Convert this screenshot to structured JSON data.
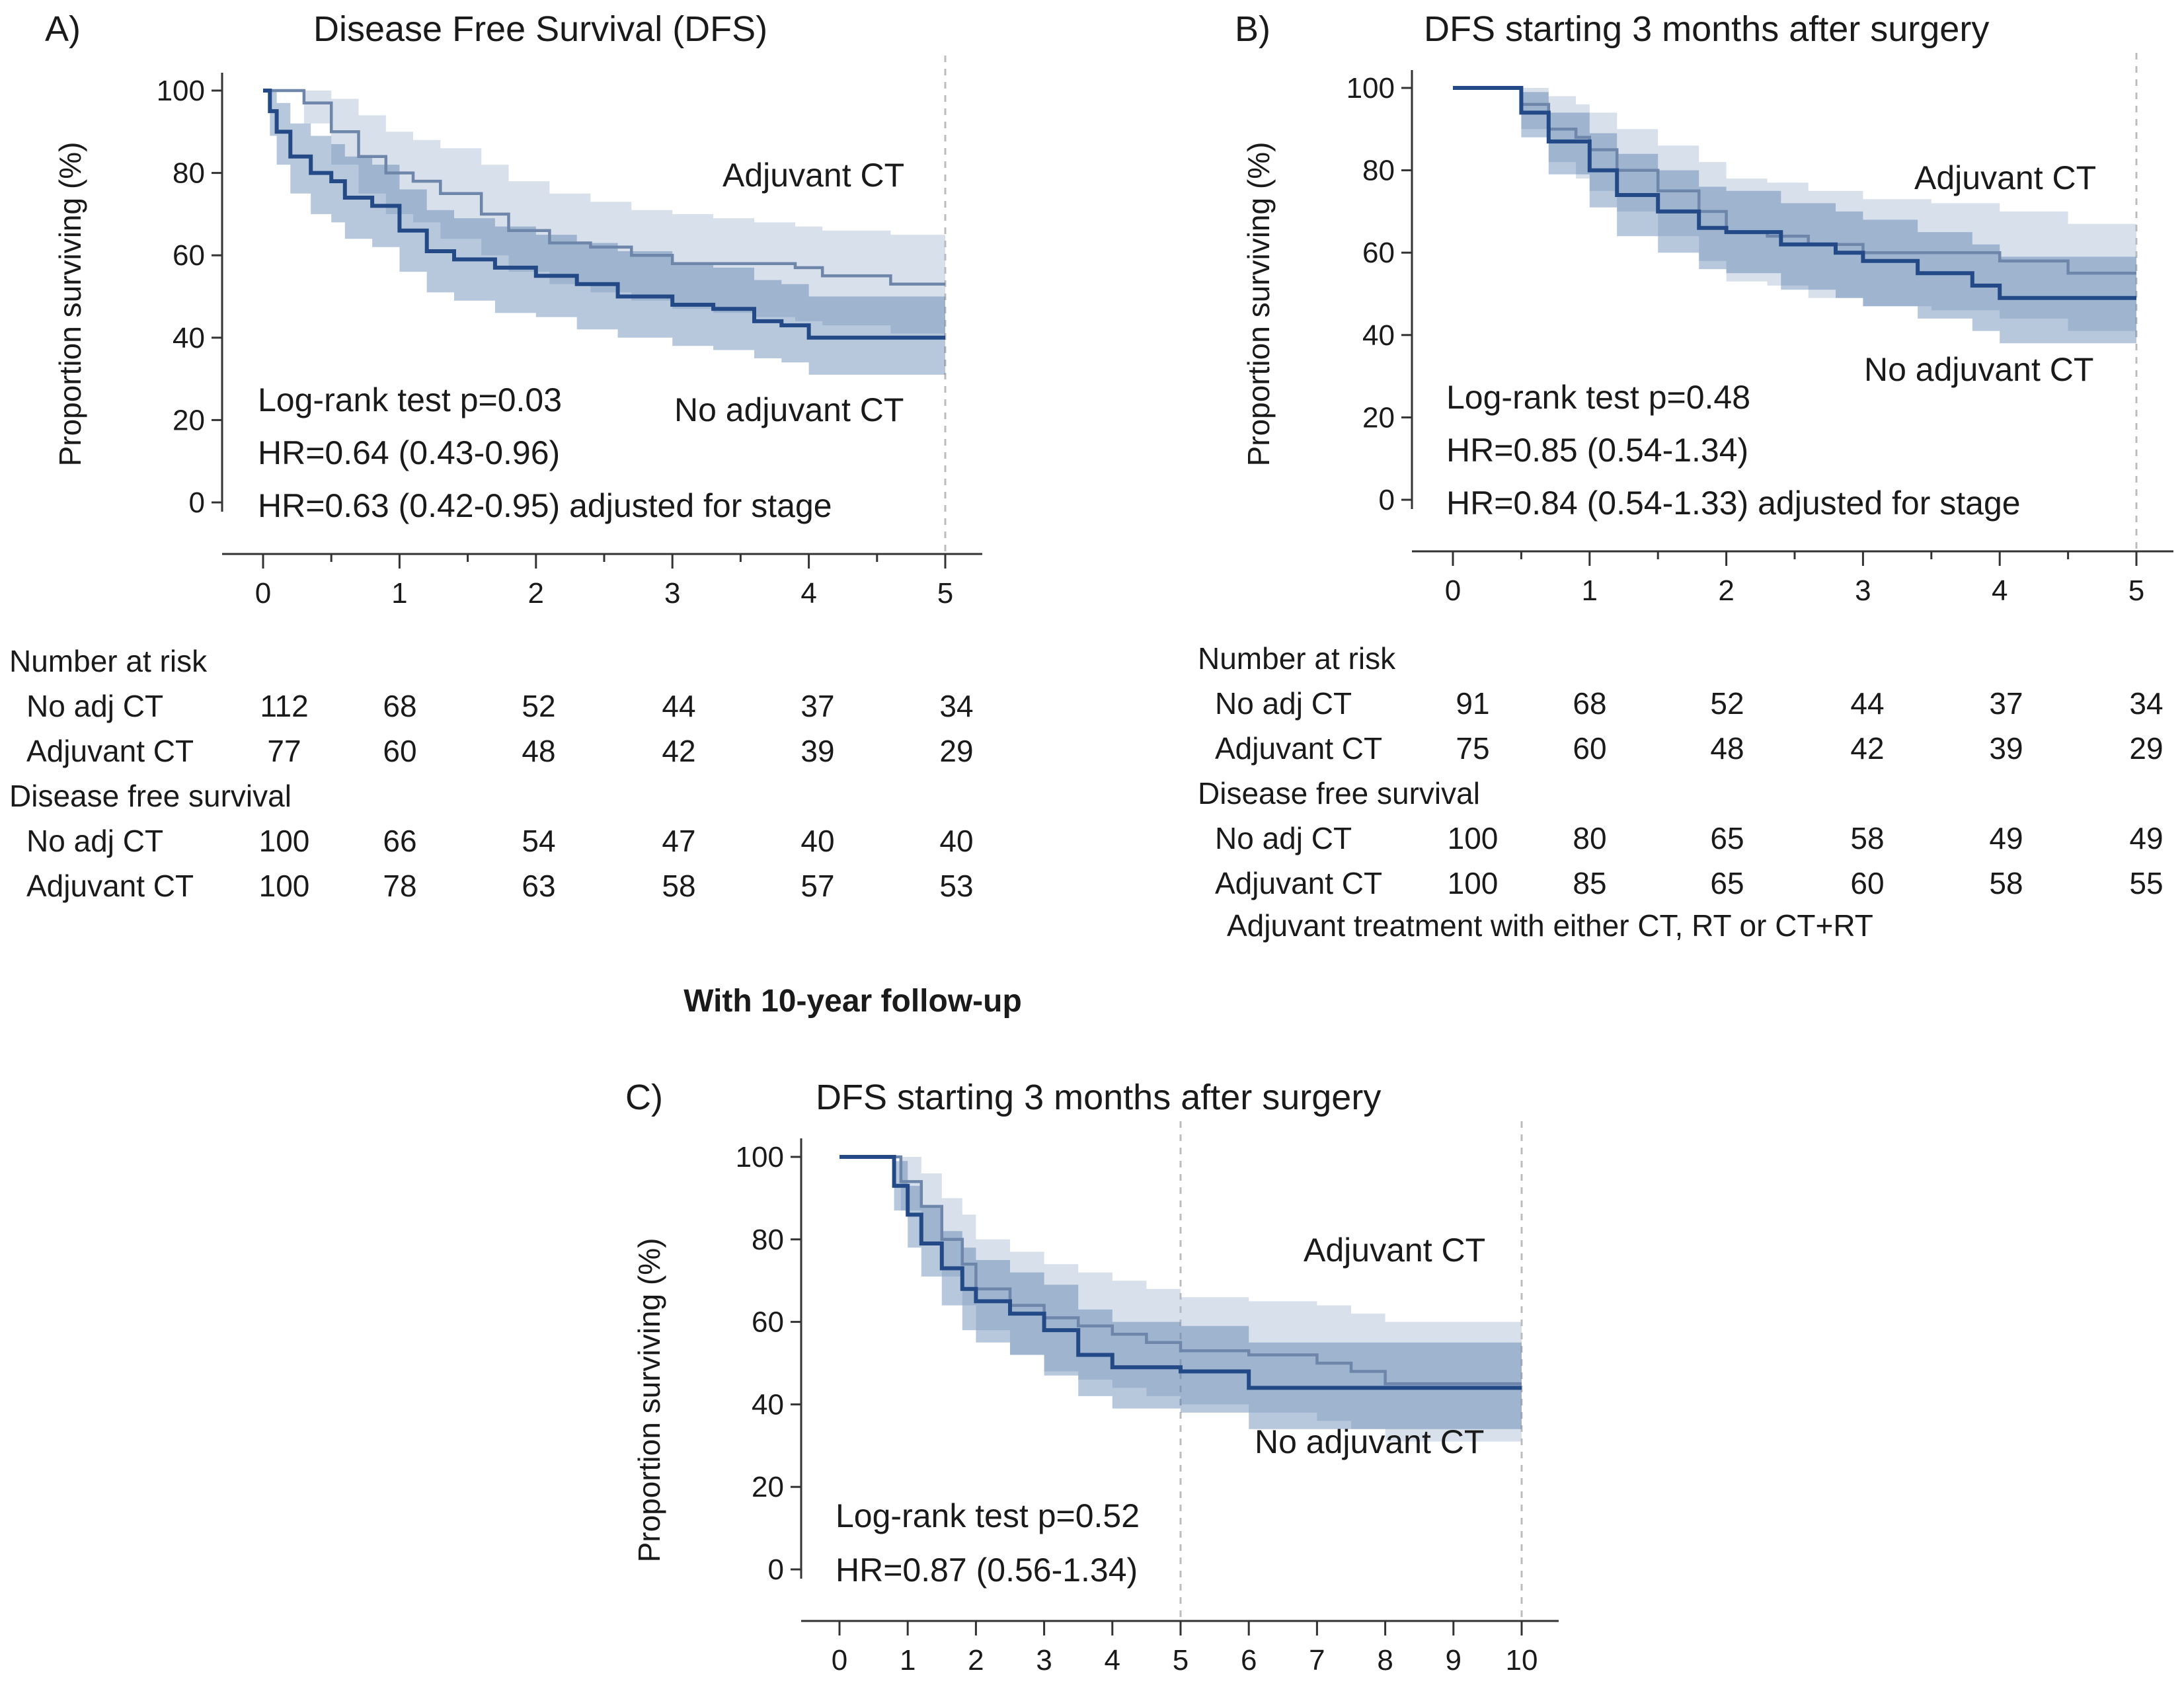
{
  "colors": {
    "adjuvant": "#6f86ab",
    "no_adjuvant": "#234a86",
    "adjuvant_band": "#a9bad4",
    "no_adjuvant_band": "#35609a"
  },
  "middle_heading": "With 10-year follow-up",
  "panels": [
    {
      "id": "A",
      "letter": "A)",
      "title": "Disease Free Survival (DFS)",
      "ylabel": "Proportion surviving (%)",
      "label_adjuvant": "Adjuvant CT",
      "label_no_adjuvant": "No adjuvant CT",
      "stats": [
        "Log-rank test p=0.03",
        "HR=0.64 (0.43-0.96)",
        "HR=0.63 (0.42-0.95) adjusted for stage"
      ],
      "risk_table": {
        "number_at_risk_label": "Number at risk",
        "dfs_label": "Disease free survival",
        "rows_at_risk": [
          {
            "label": "No adj CT",
            "values": [
              "112",
              "68",
              "52",
              "44",
              "37",
              "34"
            ]
          },
          {
            "label": "Adjuvant CT",
            "values": [
              "77",
              "60",
              "48",
              "42",
              "39",
              "29"
            ]
          }
        ],
        "rows_dfs": [
          {
            "label": "No adj CT",
            "values": [
              "100",
              "66",
              "54",
              "47",
              "40",
              "40"
            ]
          },
          {
            "label": "Adjuvant CT",
            "values": [
              "100",
              "78",
              "63",
              "58",
              "57",
              "53"
            ]
          }
        ],
        "footnote": ""
      }
    },
    {
      "id": "B",
      "letter": "B)",
      "title": "DFS starting 3 months after surgery",
      "ylabel": "Proportion surviving (%)",
      "label_adjuvant": "Adjuvant CT",
      "label_no_adjuvant": "No adjuvant CT",
      "stats": [
        "Log-rank test p=0.48",
        "HR=0.85 (0.54-1.34)",
        "HR=0.84 (0.54-1.33) adjusted for stage"
      ],
      "risk_table": {
        "number_at_risk_label": "Number at risk",
        "dfs_label": "Disease free survival",
        "rows_at_risk": [
          {
            "label": "No adj CT",
            "values": [
              "91",
              "68",
              "52",
              "44",
              "37",
              "34"
            ]
          },
          {
            "label": "Adjuvant CT",
            "values": [
              "75",
              "60",
              "48",
              "42",
              "39",
              "29"
            ]
          }
        ],
        "rows_dfs": [
          {
            "label": "No adj CT",
            "values": [
              "100",
              "80",
              "65",
              "58",
              "49",
              "49"
            ]
          },
          {
            "label": "Adjuvant CT",
            "values": [
              "100",
              "85",
              "65",
              "60",
              "58",
              "55"
            ]
          }
        ],
        "footnote": "Adjuvant treatment with either CT, RT or CT+RT"
      }
    },
    {
      "id": "C",
      "letter": "C)",
      "title": "DFS starting 3 months after surgery",
      "ylabel": "Proportion surviving (%)",
      "label_adjuvant": "Adjuvant CT",
      "label_no_adjuvant": "No adjuvant CT",
      "stats": [
        "Log-rank test p=0.52",
        "HR=0.87 (0.56-1.34)"
      ]
    }
  ],
  "chart_data": [
    {
      "type": "line",
      "panel": "A",
      "title": "Disease Free Survival (DFS)",
      "xlabel": "",
      "ylabel": "Proportion surviving (%)",
      "xlim": [
        0,
        5
      ],
      "ylim": [
        0,
        100
      ],
      "xticks": [
        "0",
        "1",
        "2",
        "3",
        "4",
        "5"
      ],
      "yticks": [
        "0",
        "20",
        "40",
        "60",
        "80",
        "100"
      ],
      "ref_lines_x": [
        5
      ],
      "series": [
        {
          "name": "Adjuvant CT",
          "x": [
            0,
            0.15,
            0.3,
            0.5,
            0.7,
            0.9,
            1.1,
            1.3,
            1.6,
            1.8,
            2.1,
            2.4,
            2.7,
            3.0,
            3.3,
            3.6,
            3.9,
            4.1,
            4.6,
            5.0
          ],
          "y": [
            100,
            100,
            97,
            90,
            84,
            80,
            78,
            75,
            70,
            66,
            63,
            62,
            60,
            58,
            58,
            58,
            57,
            55,
            53,
            53
          ],
          "lower": [
            100,
            100,
            92,
            82,
            75,
            70,
            68,
            64,
            60,
            56,
            53,
            51,
            49,
            47,
            46,
            45,
            44,
            43,
            41,
            40
          ],
          "upper": [
            100,
            100,
            100,
            98,
            94,
            90,
            88,
            86,
            82,
            78,
            75,
            73,
            71,
            70,
            69,
            68,
            67,
            66,
            65,
            65
          ]
        },
        {
          "name": "No adjuvant CT",
          "x": [
            0,
            0.05,
            0.1,
            0.2,
            0.35,
            0.5,
            0.6,
            0.8,
            1.0,
            1.2,
            1.4,
            1.7,
            2.0,
            2.3,
            2.6,
            3.0,
            3.3,
            3.6,
            3.8,
            4.0,
            5.0
          ],
          "y": [
            100,
            95,
            90,
            84,
            80,
            78,
            74,
            72,
            66,
            61,
            59,
            57,
            55,
            53,
            50,
            48,
            47,
            44,
            43,
            40,
            40
          ],
          "lower": [
            100,
            89,
            82,
            75,
            70,
            68,
            64,
            62,
            56,
            51,
            49,
            46,
            45,
            42,
            40,
            38,
            37,
            35,
            34,
            31,
            31
          ],
          "upper": [
            100,
            100,
            97,
            92,
            89,
            87,
            84,
            82,
            76,
            71,
            69,
            67,
            65,
            63,
            61,
            58,
            57,
            54,
            53,
            50,
            50
          ]
        }
      ]
    },
    {
      "type": "line",
      "panel": "B",
      "title": "DFS starting 3 months after surgery",
      "xlabel": "",
      "ylabel": "Proportion surviving (%)",
      "xlim": [
        0,
        5
      ],
      "ylim": [
        0,
        100
      ],
      "xticks": [
        "0",
        "1",
        "2",
        "3",
        "4",
        "5"
      ],
      "yticks": [
        "0",
        "20",
        "40",
        "60",
        "80",
        "100"
      ],
      "ref_lines_x": [
        5
      ],
      "series": [
        {
          "name": "Adjuvant CT",
          "x": [
            0,
            0.3,
            0.5,
            0.7,
            0.9,
            1.0,
            1.2,
            1.5,
            1.8,
            2.0,
            2.3,
            2.6,
            3.0,
            3.5,
            4.0,
            4.5,
            5.0
          ],
          "y": [
            100,
            100,
            96,
            90,
            88,
            85,
            80,
            75,
            70,
            65,
            64,
            62,
            60,
            60,
            58,
            55,
            55
          ],
          "lower": [
            100,
            100,
            90,
            82,
            78,
            75,
            70,
            64,
            58,
            53,
            52,
            49,
            47,
            46,
            44,
            41,
            40
          ],
          "upper": [
            100,
            100,
            100,
            98,
            96,
            94,
            90,
            86,
            82,
            78,
            77,
            75,
            73,
            72,
            70,
            67,
            67
          ]
        },
        {
          "name": "No adjuvant CT",
          "x": [
            0,
            0.3,
            0.5,
            0.7,
            1.0,
            1.2,
            1.5,
            1.8,
            2.0,
            2.4,
            2.8,
            3.0,
            3.4,
            3.8,
            4.0,
            5.0
          ],
          "y": [
            100,
            100,
            94,
            87,
            80,
            74,
            70,
            66,
            65,
            62,
            60,
            58,
            55,
            52,
            49,
            49
          ],
          "lower": [
            100,
            100,
            88,
            79,
            71,
            64,
            60,
            56,
            55,
            51,
            49,
            47,
            44,
            41,
            38,
            38
          ],
          "upper": [
            100,
            100,
            99,
            94,
            89,
            84,
            80,
            76,
            75,
            72,
            70,
            68,
            65,
            62,
            59,
            59
          ]
        }
      ]
    },
    {
      "type": "line",
      "panel": "C",
      "title": "DFS starting 3 months after surgery",
      "xlabel": "",
      "ylabel": "Proportion surviving (%)",
      "xlim": [
        0,
        10
      ],
      "ylim": [
        0,
        100
      ],
      "xticks": [
        "0",
        "1",
        "2",
        "3",
        "4",
        "5",
        "6",
        "7",
        "8",
        "9",
        "10"
      ],
      "yticks": [
        "0",
        "20",
        "40",
        "60",
        "80",
        "100"
      ],
      "ref_lines_x": [
        5,
        10
      ],
      "series": [
        {
          "name": "Adjuvant CT",
          "x": [
            0,
            0.6,
            0.9,
            1.2,
            1.5,
            1.8,
            2.0,
            2.5,
            3.0,
            3.5,
            4.0,
            4.5,
            5.0,
            6.0,
            7.0,
            7.5,
            8.0,
            10.0
          ],
          "y": [
            100,
            100,
            94,
            88,
            80,
            74,
            68,
            64,
            61,
            59,
            57,
            55,
            53,
            52,
            50,
            48,
            45,
            45
          ],
          "lower": [
            100,
            100,
            87,
            79,
            71,
            64,
            58,
            52,
            48,
            46,
            44,
            42,
            40,
            38,
            36,
            34,
            31,
            31
          ],
          "upper": [
            100,
            100,
            100,
            96,
            90,
            86,
            80,
            77,
            74,
            72,
            70,
            68,
            66,
            65,
            64,
            62,
            60,
            60
          ]
        },
        {
          "name": "No adjuvant CT",
          "x": [
            0,
            0.5,
            0.8,
            1.0,
            1.2,
            1.5,
            1.8,
            2.0,
            2.5,
            3.0,
            3.5,
            4.0,
            5.0,
            6.0,
            10.0
          ],
          "y": [
            100,
            100,
            93,
            86,
            79,
            73,
            68,
            65,
            62,
            58,
            52,
            49,
            48,
            44,
            44
          ],
          "lower": [
            100,
            100,
            87,
            78,
            71,
            64,
            58,
            55,
            52,
            47,
            42,
            39,
            38,
            34,
            34
          ],
          "upper": [
            100,
            100,
            99,
            93,
            88,
            82,
            78,
            75,
            72,
            69,
            63,
            60,
            59,
            55,
            55
          ]
        }
      ]
    }
  ]
}
